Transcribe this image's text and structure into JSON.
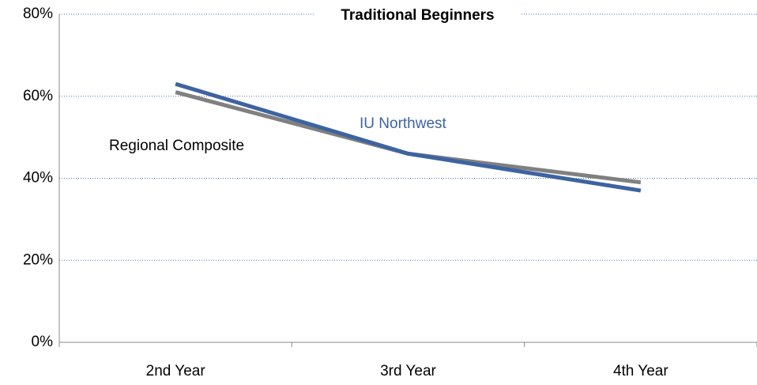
{
  "chart_data": {
    "type": "line",
    "title": "Traditional Beginners",
    "categories": [
      "2nd Year",
      "3rd Year",
      "4th Year"
    ],
    "series": [
      {
        "name": "IU Northwest",
        "color": "#3d63a0",
        "values": [
          63,
          46,
          37
        ]
      },
      {
        "name": "Regional Composite",
        "color": "#808080",
        "values": [
          61,
          46,
          39
        ]
      }
    ],
    "ylim": [
      0,
      80
    ],
    "yticks": [
      {
        "value": 0,
        "label": "0%"
      },
      {
        "value": 20,
        "label": "20%"
      },
      {
        "value": 40,
        "label": "40%"
      },
      {
        "value": 60,
        "label": "60%"
      },
      {
        "value": 80,
        "label": "80%"
      }
    ],
    "grid": true
  }
}
